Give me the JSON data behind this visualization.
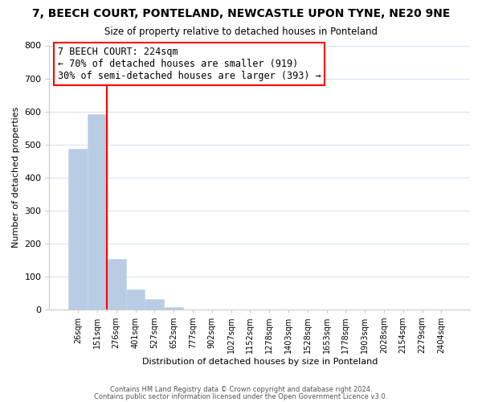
{
  "title": "7, BEECH COURT, PONTELAND, NEWCASTLE UPON TYNE, NE20 9NE",
  "subtitle": "Size of property relative to detached houses in Ponteland",
  "xlabel": "Distribution of detached houses by size in Ponteland",
  "ylabel": "Number of detached properties",
  "bar_values": [
    487,
    591,
    152,
    61,
    31,
    8,
    0,
    0,
    0,
    0,
    0,
    0,
    0,
    0,
    0,
    0,
    0,
    0,
    0,
    0
  ],
  "bar_labels": [
    "26sqm",
    "151sqm",
    "276sqm",
    "401sqm",
    "527sqm",
    "652sqm",
    "777sqm",
    "902sqm",
    "1027sqm",
    "1152sqm",
    "1278sqm",
    "1403sqm",
    "1528sqm",
    "1653sqm",
    "1778sqm",
    "1903sqm",
    "2028sqm",
    "2154sqm",
    "2279sqm",
    "2404sqm"
  ],
  "bar_color": "#b8cce4",
  "bar_edge_color": "#c8d8ea",
  "grid_color": "#d8e4f0",
  "vline_color": "red",
  "vline_x": 1.5,
  "ylim": [
    0,
    800
  ],
  "yticks": [
    0,
    100,
    200,
    300,
    400,
    500,
    600,
    700,
    800
  ],
  "annotation_title": "7 BEECH COURT: 224sqm",
  "annotation_line1": "← 70% of detached houses are smaller (919)",
  "annotation_line2": "30% of semi-detached houses are larger (393) →",
  "footer1": "Contains HM Land Registry data © Crown copyright and database right 2024.",
  "footer2": "Contains public sector information licensed under the Open Government Licence v3.0."
}
